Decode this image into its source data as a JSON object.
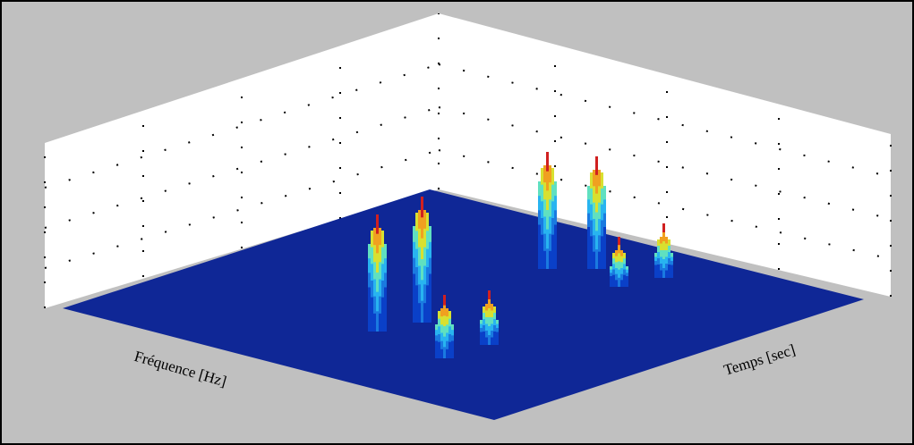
{
  "chart_data": {
    "type": "surface3d",
    "xlabel": "Fréquence [Hz]",
    "ylabel": "Temps [sec]"
  }
}
